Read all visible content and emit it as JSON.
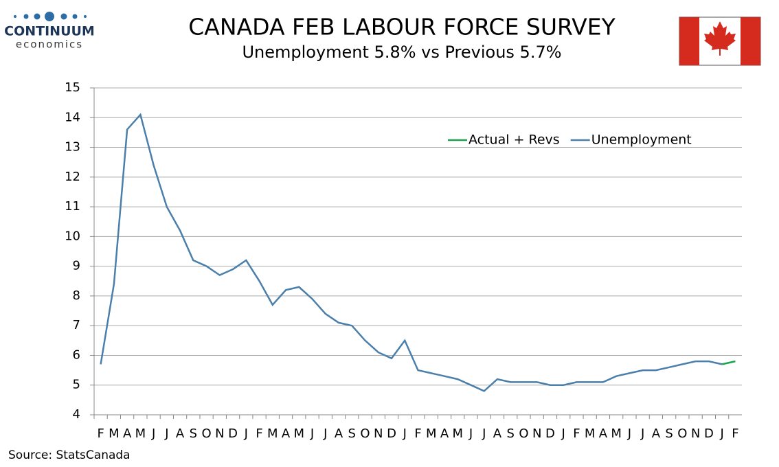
{
  "logo": {
    "name": "CONTINUUM",
    "sub": "economics"
  },
  "source": "Source: StatsCanada",
  "chart_data": {
    "type": "line",
    "title": "CANADA FEB LABOUR FORCE SURVEY",
    "subtitle": "Unemployment  5.8% vs Previous 5.7%",
    "categories": [
      "F",
      "M",
      "A",
      "M",
      "J",
      "J",
      "A",
      "S",
      "O",
      "N",
      "D",
      "J",
      "F",
      "M",
      "A",
      "M",
      "J",
      "J",
      "A",
      "S",
      "O",
      "N",
      "D",
      "J",
      "F",
      "M",
      "A",
      "M",
      "J",
      "J",
      "A",
      "S",
      "O",
      "N",
      "D",
      "J",
      "F",
      "M",
      "A",
      "M",
      "J",
      "J",
      "A",
      "S",
      "O",
      "N",
      "D",
      "J",
      "F"
    ],
    "series": [
      {
        "name": "Actual + Revs",
        "color": "#1aa34a",
        "values": [
          null,
          null,
          null,
          null,
          null,
          null,
          null,
          null,
          null,
          null,
          null,
          null,
          null,
          null,
          null,
          null,
          null,
          null,
          null,
          null,
          null,
          null,
          null,
          null,
          null,
          null,
          null,
          null,
          null,
          null,
          null,
          null,
          null,
          null,
          null,
          null,
          null,
          null,
          null,
          null,
          null,
          null,
          null,
          null,
          null,
          null,
          null,
          5.7,
          5.8
        ]
      },
      {
        "name": "Unemployment",
        "color": "#4a7fab",
        "values": [
          5.7,
          8.4,
          13.6,
          14.1,
          12.4,
          11.0,
          10.2,
          9.2,
          9.0,
          8.7,
          8.9,
          9.2,
          8.5,
          7.7,
          8.2,
          8.3,
          7.9,
          7.4,
          7.1,
          7.0,
          6.5,
          6.1,
          5.9,
          6.5,
          5.5,
          5.4,
          5.3,
          5.2,
          5.0,
          4.8,
          5.2,
          5.1,
          5.1,
          5.1,
          5.0,
          5.0,
          5.1,
          5.1,
          5.1,
          5.3,
          5.4,
          5.5,
          5.5,
          5.6,
          5.7,
          5.8,
          5.8,
          5.7,
          null
        ]
      }
    ],
    "ylim": [
      4,
      15
    ],
    "yticks": [
      4,
      5,
      6,
      7,
      8,
      9,
      10,
      11,
      12,
      13,
      14,
      15
    ],
    "grid": true,
    "legend": "top-right"
  }
}
